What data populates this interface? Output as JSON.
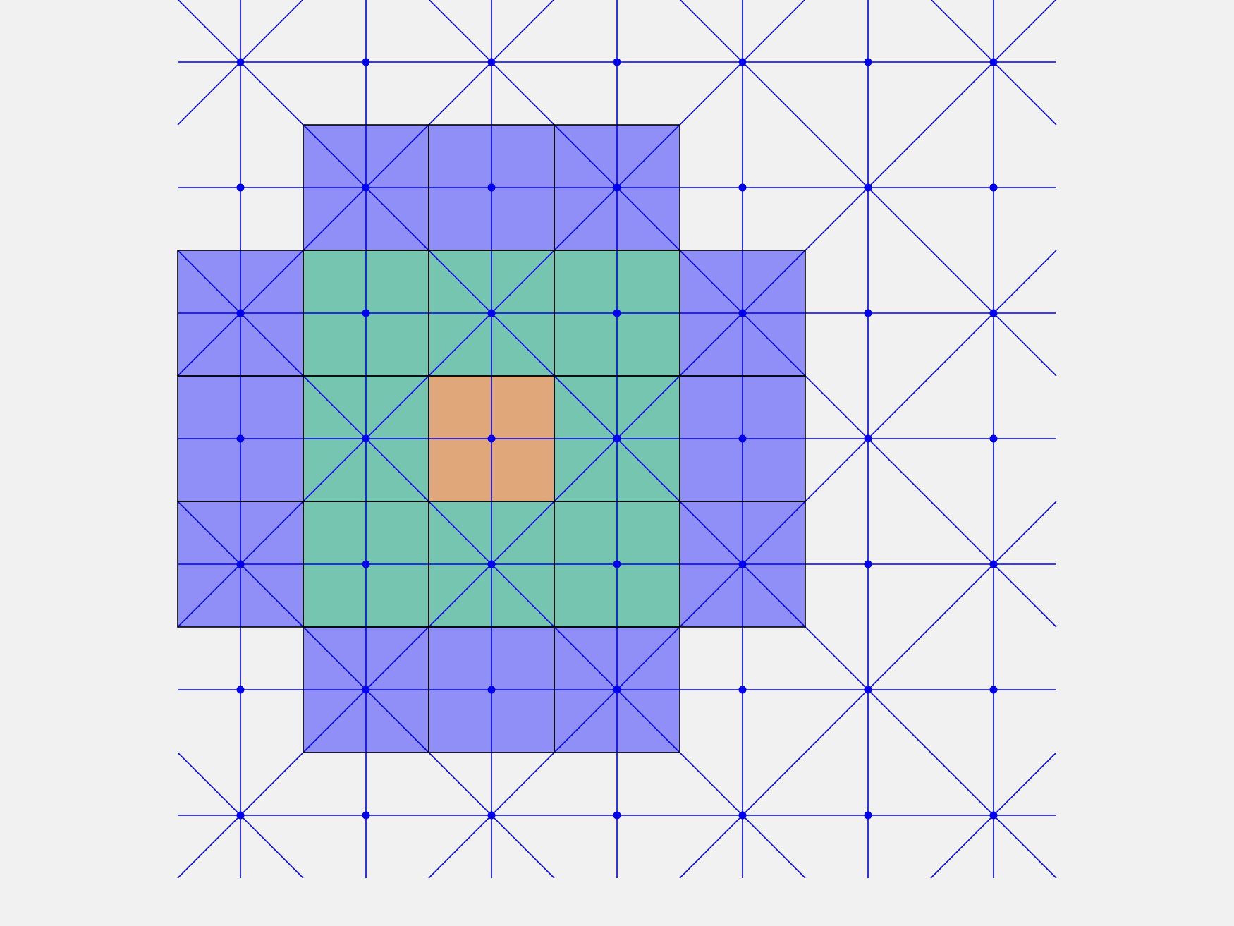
{
  "diagram": {
    "type": "mesh-stencil",
    "grid_columns": 7,
    "grid_rows": 7,
    "colors": {
      "background": "#f1f1f2",
      "mesh_line": "#0000ee",
      "node": "#0000ee",
      "cell_border": "#000000",
      "ring_outer": "#8f8ff7",
      "ring_inner": "#76c5b1",
      "center": "#e0a77a"
    },
    "center_cell": {
      "col": 2,
      "row": 3
    },
    "regions": [
      {
        "name": "center",
        "color_key": "center",
        "cells": [
          [
            2,
            3
          ]
        ]
      },
      {
        "name": "ring-1",
        "color_key": "ring_inner",
        "cells": [
          [
            1,
            2
          ],
          [
            2,
            2
          ],
          [
            3,
            2
          ],
          [
            1,
            3
          ],
          [
            3,
            3
          ],
          [
            1,
            4
          ],
          [
            2,
            4
          ],
          [
            3,
            4
          ]
        ]
      },
      {
        "name": "ring-2",
        "color_key": "ring_outer",
        "cells": [
          [
            1,
            1
          ],
          [
            2,
            1
          ],
          [
            3,
            1
          ],
          [
            0,
            2
          ],
          [
            4,
            2
          ],
          [
            0,
            3
          ],
          [
            4,
            3
          ],
          [
            0,
            4
          ],
          [
            4,
            4
          ],
          [
            1,
            5
          ],
          [
            2,
            5
          ],
          [
            3,
            5
          ]
        ]
      }
    ],
    "icons": {
      "node": "node-dot-icon"
    }
  }
}
